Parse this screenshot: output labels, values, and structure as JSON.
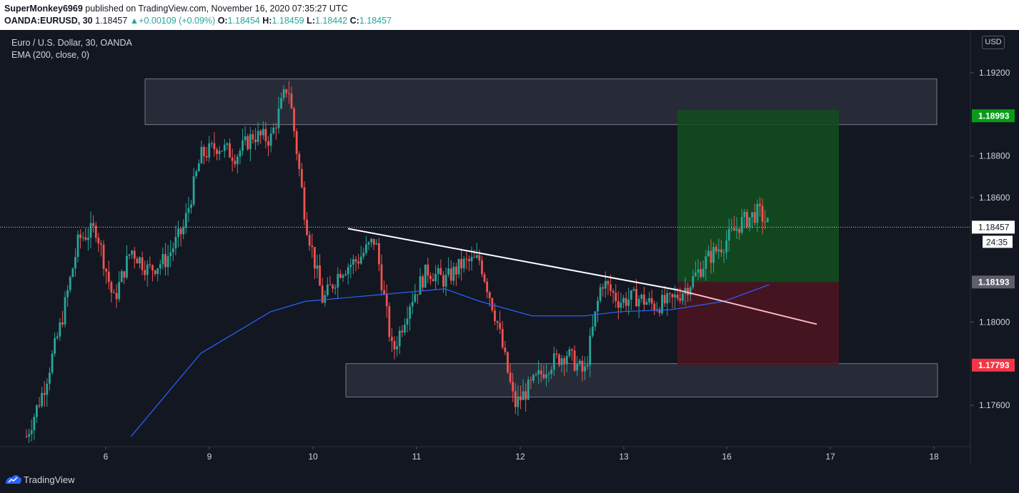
{
  "header": {
    "author": "SuperMonkey6969",
    "published_text": "published on TradingView.com, November 16, 2020 07:35:27 UTC",
    "symbol": "OANDA:EURUSD, 30",
    "last": "1.18457",
    "change": "+0.00109 (+0.09%)",
    "open_label": "O:",
    "open": "1.18454",
    "high_label": "H:",
    "high": "1.18459",
    "low_label": "L:",
    "low": "1.18442",
    "close_label": "C:",
    "close": "1.18457"
  },
  "legend": {
    "title": "Euro / U.S. Dollar, 30, OANDA",
    "indicator": "EMA (200, close, 0)"
  },
  "currency": "USD",
  "footer": {
    "brand": "TradingView"
  },
  "colors": {
    "background": "#131722",
    "up": "#26a69a",
    "down": "#ef5350",
    "ema": "#2962ff",
    "profit_zone": "#134f1d",
    "loss_zone": "#4d1520",
    "target_label": "#089c19",
    "stop_label": "#f23645",
    "entry_label": "#5d606b"
  },
  "chart_data": {
    "type": "candlestick",
    "x_ticks": [
      "6",
      "9",
      "10",
      "11",
      "12",
      "13",
      "16",
      "17",
      "18"
    ],
    "y_ticks": [
      "1.19200",
      "1.18800",
      "1.18600",
      "1.18000",
      "1.17600"
    ],
    "ylim": [
      1.1743,
      1.1928
    ],
    "current_price": "1.18457",
    "countdown": "24:35",
    "target_price": "1.18993",
    "entry_price": "1.18193",
    "stop_price": "1.17793",
    "resistance_zone": [
      1.1895,
      1.1917
    ],
    "support_zone": [
      1.1764,
      1.178
    ],
    "trendline": [
      [
        1.1845,
        1.1799
      ]
    ],
    "price_path": [
      [
        0.0,
        1.1745
      ],
      [
        0.5,
        1.1768
      ],
      [
        1.0,
        1.18
      ],
      [
        1.5,
        1.184
      ],
      [
        2.0,
        1.1845
      ],
      [
        2.5,
        1.181
      ],
      [
        3.0,
        1.1835
      ],
      [
        3.5,
        1.1825
      ],
      [
        4.0,
        1.183
      ],
      [
        4.5,
        1.1845
      ],
      [
        5.0,
        1.188
      ],
      [
        5.5,
        1.1885
      ],
      [
        6.0,
        1.188
      ],
      [
        6.5,
        1.189
      ],
      [
        7.0,
        1.1888
      ],
      [
        7.5,
        1.1915
      ],
      [
        8.0,
        1.185
      ],
      [
        8.5,
        1.181
      ],
      [
        9.0,
        1.1825
      ],
      [
        9.5,
        1.183
      ],
      [
        10.0,
        1.184
      ],
      [
        10.5,
        1.1785
      ],
      [
        11.0,
        1.181
      ],
      [
        11.5,
        1.1825
      ],
      [
        12.0,
        1.182
      ],
      [
        12.5,
        1.1828
      ],
      [
        13.0,
        1.183
      ],
      [
        13.5,
        1.18
      ],
      [
        14.0,
        1.176
      ],
      [
        14.5,
        1.177
      ],
      [
        15.0,
        1.178
      ],
      [
        15.5,
        1.1785
      ],
      [
        16.0,
        1.1775
      ],
      [
        16.5,
        1.182
      ],
      [
        17.0,
        1.181
      ],
      [
        17.5,
        1.1812
      ],
      [
        18.0,
        1.1808
      ],
      [
        18.5,
        1.181
      ],
      [
        19.0,
        1.1818
      ],
      [
        19.5,
        1.183
      ],
      [
        20.0,
        1.1838
      ],
      [
        20.5,
        1.1848
      ],
      [
        21.0,
        1.1853
      ],
      [
        21.3,
        1.1846
      ]
    ],
    "ema_path": [
      [
        3.0,
        1.1745
      ],
      [
        5.0,
        1.1785
      ],
      [
        7.0,
        1.1805
      ],
      [
        8.0,
        1.181
      ],
      [
        10.0,
        1.1813
      ],
      [
        12.0,
        1.1816
      ],
      [
        13.0,
        1.181
      ],
      [
        14.5,
        1.1803
      ],
      [
        16.0,
        1.1803
      ],
      [
        17.0,
        1.1805
      ],
      [
        18.5,
        1.1806
      ],
      [
        20.0,
        1.181
      ],
      [
        21.3,
        1.1818
      ]
    ]
  }
}
